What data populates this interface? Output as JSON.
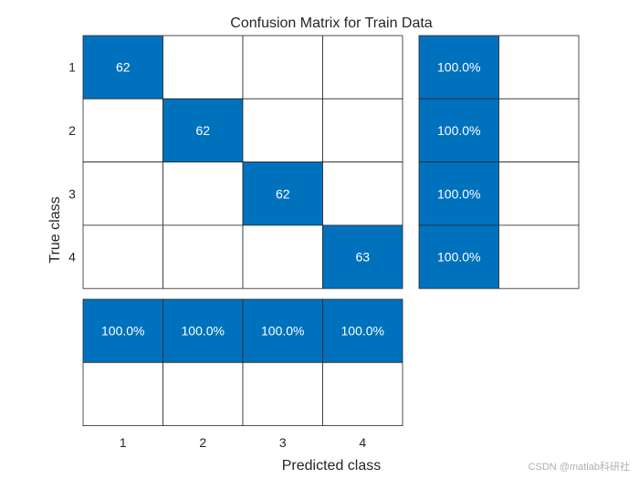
{
  "chart_data": {
    "type": "heatmap",
    "title": "Confusion Matrix for Train Data",
    "xlabel": "Predicted class",
    "ylabel": "True class",
    "classes": [
      "1",
      "2",
      "3",
      "4"
    ],
    "matrix": [
      [
        62,
        0,
        0,
        0
      ],
      [
        0,
        62,
        0,
        0
      ],
      [
        0,
        0,
        62,
        0
      ],
      [
        0,
        0,
        0,
        63
      ]
    ],
    "row_summary": {
      "correct": [
        "100.0%",
        "100.0%",
        "100.0%",
        "100.0%"
      ],
      "incorrect": [
        "",
        "",
        "",
        ""
      ]
    },
    "column_summary": {
      "correct": [
        "100.0%",
        "100.0%",
        "100.0%",
        "100.0%"
      ],
      "incorrect": [
        "",
        "",
        "",
        ""
      ]
    },
    "colors": {
      "filled": "#0072BD",
      "empty": "#ffffff",
      "border": "#262626",
      "filled_text": "#ffffff",
      "text": "#262626"
    }
  },
  "watermark": "CSDN @matlab科研社"
}
